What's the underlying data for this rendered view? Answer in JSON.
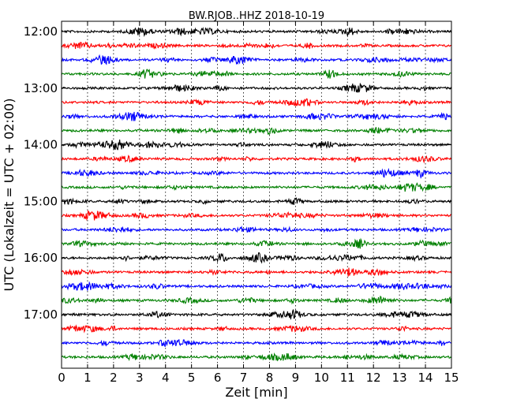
{
  "chart_data": {
    "type": "line",
    "title": "BW.RJOB..HHZ 2018-10-19",
    "xlabel": "Zeit  [min]",
    "ylabel": "UTC (Lokalzeit = UTC + 02:00)",
    "xlim": [
      0,
      15
    ],
    "x_ticks": [
      "0",
      "1",
      "2",
      "3",
      "4",
      "5",
      "6",
      "7",
      "8",
      "9",
      "10",
      "11",
      "12",
      "13",
      "14",
      "15"
    ],
    "y_ticks": [
      "12:00",
      "13:00",
      "14:00",
      "15:00",
      "16:00",
      "17:00"
    ],
    "grid": "vertical",
    "colors": [
      "#000000",
      "#ff0000",
      "#0000ff",
      "#008000"
    ],
    "traces": [
      {
        "start": "12:00",
        "color": "#000000"
      },
      {
        "start": "12:15",
        "color": "#ff0000"
      },
      {
        "start": "12:30",
        "color": "#0000ff"
      },
      {
        "start": "12:45",
        "color": "#008000"
      },
      {
        "start": "13:00",
        "color": "#000000"
      },
      {
        "start": "13:15",
        "color": "#ff0000"
      },
      {
        "start": "13:30",
        "color": "#0000ff"
      },
      {
        "start": "13:45",
        "color": "#008000"
      },
      {
        "start": "14:00",
        "color": "#000000"
      },
      {
        "start": "14:15",
        "color": "#ff0000"
      },
      {
        "start": "14:30",
        "color": "#0000ff"
      },
      {
        "start": "14:45",
        "color": "#008000"
      },
      {
        "start": "15:00",
        "color": "#000000"
      },
      {
        "start": "15:15",
        "color": "#ff0000"
      },
      {
        "start": "15:30",
        "color": "#0000ff"
      },
      {
        "start": "15:45",
        "color": "#008000"
      },
      {
        "start": "16:00",
        "color": "#000000"
      },
      {
        "start": "16:15",
        "color": "#ff0000"
      },
      {
        "start": "16:30",
        "color": "#0000ff"
      },
      {
        "start": "16:45",
        "color": "#008000"
      },
      {
        "start": "17:00",
        "color": "#000000"
      },
      {
        "start": "17:15",
        "color": "#ff0000"
      },
      {
        "start": "17:30",
        "color": "#0000ff"
      },
      {
        "start": "17:45",
        "color": "#008000"
      }
    ]
  }
}
